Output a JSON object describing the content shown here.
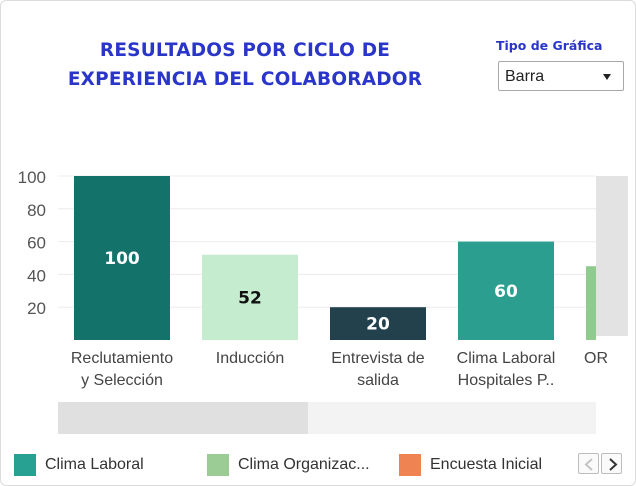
{
  "header": {
    "title_line1": "RESULTADOS POR CICLO DE",
    "title_line2": "EXPERIENCIA DEL COLABORADOR"
  },
  "chart_type_selector": {
    "label": "Tipo de Gráfica",
    "selected": "Barra"
  },
  "chart_data": {
    "type": "bar",
    "categories": [
      [
        "Reclutamiento",
        "y Selección"
      ],
      [
        "Inducción"
      ],
      [
        "Entrevista de",
        "salida"
      ],
      [
        "Clima Laboral",
        "Hospitales P.."
      ],
      [
        "OR"
      ]
    ],
    "values": [
      100,
      52,
      20,
      60,
      45
    ],
    "data_labels": [
      "100",
      "52",
      "20",
      "60",
      ""
    ],
    "bar_colors": [
      "#13736b",
      "#c6ecd0",
      "#22414d",
      "#2b9e8f",
      "#8fca8f"
    ],
    "label_colors": [
      "#ffffff",
      "#111111",
      "#ffffff",
      "#ffffff",
      "#ffffff"
    ],
    "y_ticks": [
      20,
      40,
      60,
      80,
      100
    ],
    "ylim": [
      0,
      100
    ],
    "grid": true
  },
  "legend": {
    "items": [
      {
        "label": "Clima Laboral",
        "color": "#26a192"
      },
      {
        "label": "Clima Organizac...",
        "color": "#9ccc95"
      },
      {
        "label": "Encuesta Inicial",
        "color": "#ef8351"
      }
    ],
    "prev_icon": "chevron-left-icon",
    "next_icon": "chevron-right-icon"
  }
}
